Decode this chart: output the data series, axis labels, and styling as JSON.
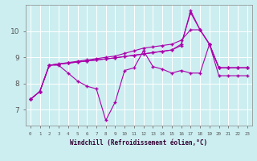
{
  "xlabel": "Windchill (Refroidissement éolien,°C)",
  "background_color": "#cceef0",
  "grid_color": "#aadddd",
  "line_color": "#aa00aa",
  "xlabel_bg": "#9999cc",
  "xlim": [
    -0.5,
    23.5
  ],
  "ylim": [
    6.4,
    11.0
  ],
  "yticks": [
    7,
    8,
    9,
    10
  ],
  "series1": [
    7.4,
    7.7,
    8.7,
    8.7,
    8.4,
    8.1,
    7.9,
    7.8,
    6.6,
    7.3,
    8.5,
    8.6,
    9.25,
    8.65,
    8.55,
    8.4,
    8.5,
    8.4,
    8.4,
    9.5,
    8.3,
    8.3,
    8.3,
    8.3
  ],
  "series2": [
    7.4,
    7.7,
    8.7,
    8.75,
    8.8,
    8.85,
    8.9,
    8.95,
    9.0,
    9.05,
    9.15,
    9.25,
    9.35,
    9.4,
    9.45,
    9.5,
    9.65,
    10.05,
    10.05,
    9.5,
    8.6,
    8.6,
    8.6,
    8.6
  ],
  "series3": [
    7.4,
    7.7,
    8.7,
    8.74,
    8.78,
    8.82,
    8.86,
    8.9,
    8.94,
    8.98,
    9.03,
    9.08,
    9.13,
    9.18,
    9.23,
    9.28,
    9.45,
    10.78,
    10.05,
    9.5,
    8.6,
    8.6,
    8.6,
    8.6
  ],
  "series4": [
    7.4,
    7.7,
    8.7,
    8.74,
    8.78,
    8.82,
    8.86,
    8.9,
    8.94,
    8.98,
    9.03,
    9.08,
    9.13,
    9.18,
    9.23,
    9.28,
    9.5,
    10.7,
    10.05,
    9.5,
    8.6,
    8.6,
    8.6,
    8.6
  ]
}
